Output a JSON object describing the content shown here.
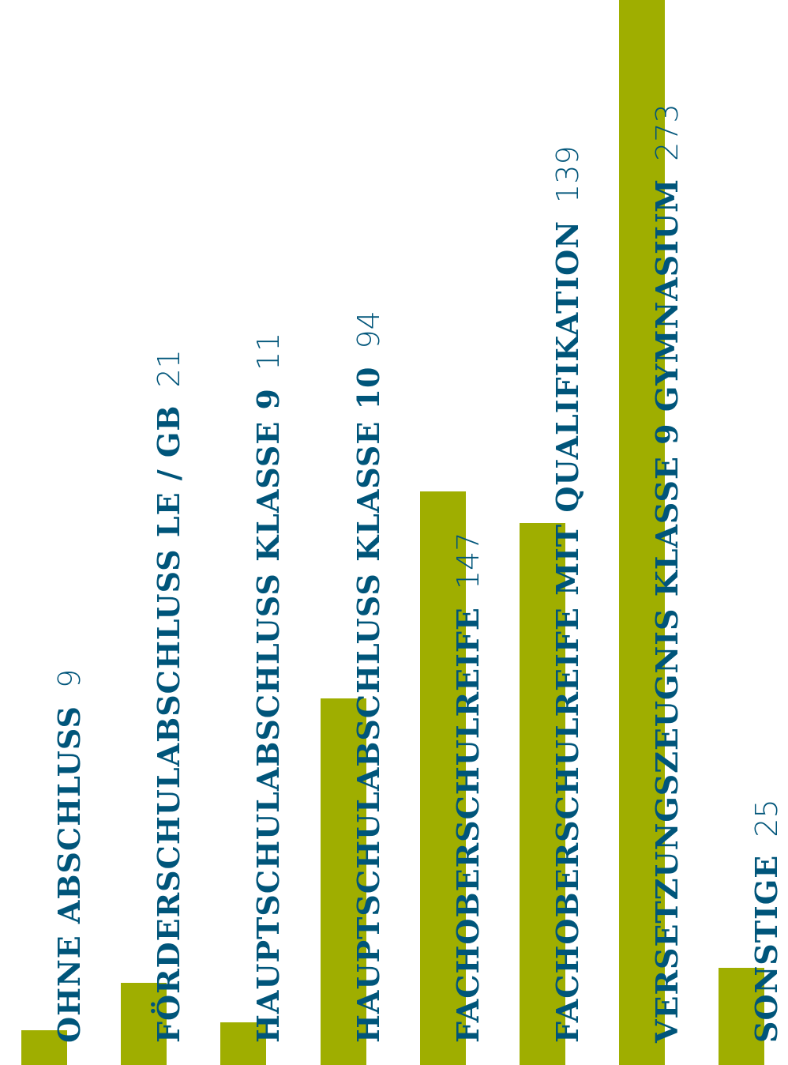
{
  "chart_data": {
    "type": "bar",
    "orientation": "vertical",
    "categories": [
      "OHNE ABSCHLUSS",
      "FÖRDERSCHULABSCHLUSS LE / GB",
      "HAUPTSCHULABSCHLUSS KLASSE 9",
      "HAUPTSCHULABSCHLUSS KLASSE 10",
      "FACHOBERSCHULREIFE",
      "FACHOBERSCHULREIFE MIT QUALIFIKATION",
      "VERSETZUNGSZEUGNIS KLASSE 9 GYMNASIUM",
      "SONSTIGE"
    ],
    "values": [
      9,
      21,
      11,
      94,
      147,
      139,
      273,
      25
    ],
    "value_labels": [
      "9",
      "21",
      "11",
      "94",
      "147",
      "139",
      "273",
      "25"
    ],
    "title": "",
    "xlabel": "",
    "ylabel": "",
    "ylim": [
      0,
      273
    ],
    "grid": false,
    "legend": false
  },
  "colors": {
    "bar": "#9fae00",
    "label": "#00557a",
    "background": "#ffffff"
  }
}
